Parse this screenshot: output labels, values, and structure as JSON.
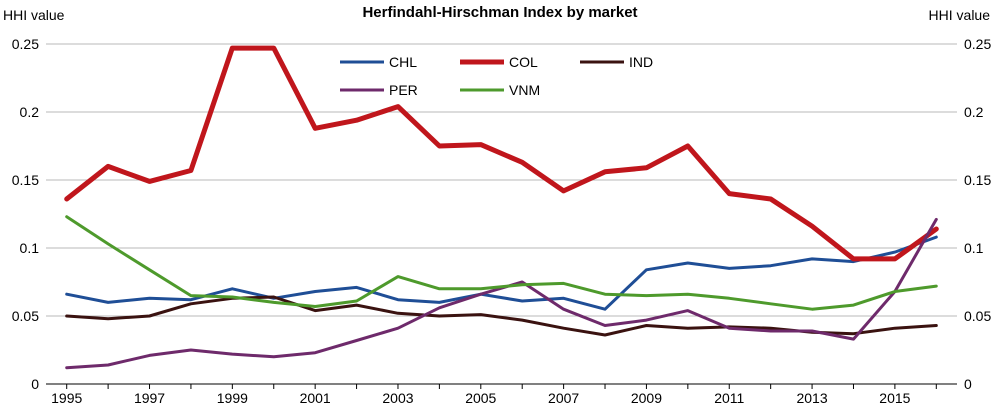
{
  "chart_data": {
    "type": "line",
    "title": "Herfindahl-Hirschman Index by market",
    "ylabel_left": "HHI value",
    "ylabel_right": "HHI value",
    "ylim": [
      0,
      0.25
    ],
    "y_ticks": [
      0,
      0.05,
      0.1,
      0.15,
      0.2,
      0.25
    ],
    "y_tick_labels": [
      "0",
      "0.05",
      "0.1",
      "0.15",
      "0.2",
      "0.25"
    ],
    "x": [
      1995,
      1996,
      1997,
      1998,
      1999,
      2000,
      2001,
      2002,
      2003,
      2004,
      2005,
      2006,
      2007,
      2008,
      2009,
      2010,
      2011,
      2012,
      2013,
      2014,
      2015,
      2016
    ],
    "x_tick_labels": [
      "1995",
      "1997",
      "1999",
      "2001",
      "2003",
      "2005",
      "2007",
      "2009",
      "2011",
      "2013",
      "2015"
    ],
    "grid": "horizontal",
    "legend_position": "top-center",
    "series": [
      {
        "name": "CHL",
        "color": "#1f4e96",
        "width": 3,
        "values": [
          0.066,
          0.06,
          0.063,
          0.062,
          0.07,
          0.063,
          0.068,
          0.071,
          0.062,
          0.06,
          0.066,
          0.061,
          0.063,
          0.055,
          0.084,
          0.089,
          0.085,
          0.087,
          0.092,
          0.09,
          0.097,
          0.108
        ]
      },
      {
        "name": "COL",
        "color": "#c0161c",
        "width": 5,
        "values": [
          0.136,
          0.16,
          0.149,
          0.157,
          0.247,
          0.247,
          0.188,
          0.194,
          0.204,
          0.175,
          0.176,
          0.163,
          0.142,
          0.156,
          0.159,
          0.175,
          0.14,
          0.136,
          0.116,
          0.092,
          0.092,
          0.114
        ]
      },
      {
        "name": "IND",
        "color": "#3a1210",
        "width": 3,
        "values": [
          0.05,
          0.048,
          0.05,
          0.059,
          0.063,
          0.064,
          0.054,
          0.058,
          0.052,
          0.05,
          0.051,
          0.047,
          0.041,
          0.036,
          0.043,
          0.041,
          0.042,
          0.041,
          0.038,
          0.037,
          0.041,
          0.043
        ]
      },
      {
        "name": "PER",
        "color": "#6e2a6b",
        "width": 3,
        "values": [
          0.012,
          0.014,
          0.021,
          0.025,
          0.022,
          0.02,
          0.023,
          0.032,
          0.041,
          0.056,
          0.066,
          0.075,
          0.055,
          0.043,
          0.047,
          0.054,
          0.041,
          0.039,
          0.039,
          0.033,
          0.068,
          0.121
        ]
      },
      {
        "name": "VNM",
        "color": "#4e9a2c",
        "width": 3,
        "values": [
          0.123,
          0.103,
          0.084,
          0.065,
          0.064,
          0.06,
          0.057,
          0.061,
          0.079,
          0.07,
          0.07,
          0.073,
          0.074,
          0.066,
          0.065,
          0.066,
          0.063,
          0.059,
          0.055,
          0.058,
          0.068,
          0.072
        ]
      }
    ]
  }
}
